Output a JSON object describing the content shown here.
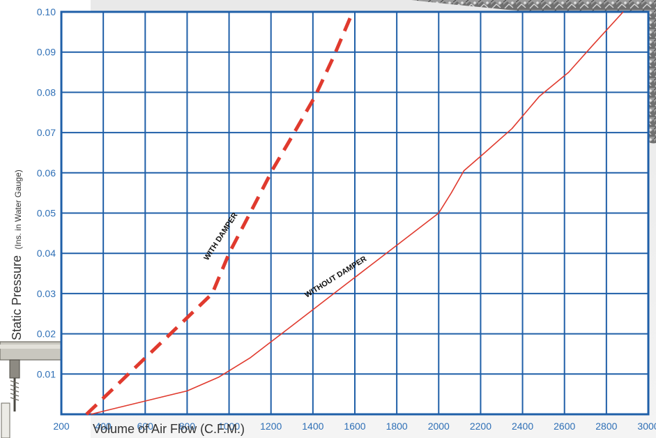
{
  "chart_data": {
    "type": "line",
    "xlabel": "Volume of Air Flow (C.F.M.)",
    "ylabel_main": "Static Pressure",
    "ylabel_units": "(Ins. in Water Gauge)",
    "xlim": [
      200,
      3000
    ],
    "ylim": [
      0,
      0.1
    ],
    "x_ticks": [
      "200",
      "400",
      "600",
      "800",
      "1000",
      "1200",
      "1400",
      "1600",
      "1800",
      "2000",
      "2200",
      "2400",
      "2600",
      "2800",
      "3000"
    ],
    "y_ticks": [
      "0.01",
      "0.02",
      "0.03",
      "0.04",
      "0.05",
      "0.06",
      "0.07",
      "0.08",
      "0.09",
      "0.10"
    ],
    "grid": true,
    "series": [
      {
        "name": "WITH DAMPER",
        "style": "dashed",
        "color": "#e03a2e",
        "points": [
          [
            320,
            0.0
          ],
          [
            500,
            0.009
          ],
          [
            700,
            0.019
          ],
          [
            920,
            0.03
          ],
          [
            1000,
            0.04
          ],
          [
            1120,
            0.052
          ],
          [
            1210,
            0.061
          ],
          [
            1300,
            0.069
          ],
          [
            1410,
            0.079
          ],
          [
            1500,
            0.089
          ],
          [
            1590,
            0.1
          ]
        ]
      },
      {
        "name": "WITHOUT DAMPER",
        "style": "solid",
        "color": "#e03a2e",
        "points": [
          [
            340,
            0.0
          ],
          [
            600,
            0.0033
          ],
          [
            800,
            0.0058
          ],
          [
            950,
            0.0092
          ],
          [
            1100,
            0.014
          ],
          [
            1300,
            0.022
          ],
          [
            1500,
            0.03
          ],
          [
            1700,
            0.038
          ],
          [
            1850,
            0.044
          ],
          [
            2000,
            0.05
          ],
          [
            2060,
            0.055
          ],
          [
            2120,
            0.0605
          ],
          [
            2220,
            0.065
          ],
          [
            2350,
            0.071
          ],
          [
            2480,
            0.079
          ],
          [
            2620,
            0.085
          ],
          [
            2740,
            0.092
          ],
          [
            2880,
            0.1
          ]
        ]
      }
    ]
  }
}
